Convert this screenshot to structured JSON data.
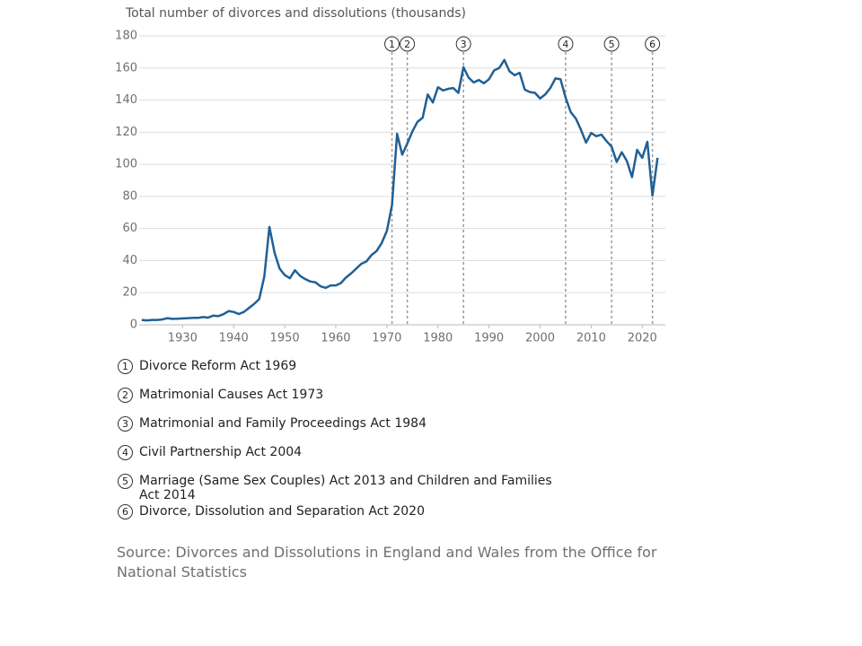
{
  "chart_data": {
    "type": "line",
    "y_label": "Total number of divorces and dissolutions (thousands)",
    "color": "#206095",
    "x": [
      1922,
      1923,
      1924,
      1925,
      1926,
      1927,
      1928,
      1929,
      1930,
      1931,
      1932,
      1933,
      1934,
      1935,
      1936,
      1937,
      1938,
      1939,
      1940,
      1941,
      1942,
      1943,
      1944,
      1945,
      1946,
      1947,
      1948,
      1949,
      1950,
      1951,
      1952,
      1953,
      1954,
      1955,
      1956,
      1957,
      1958,
      1959,
      1960,
      1961,
      1962,
      1963,
      1964,
      1965,
      1966,
      1967,
      1968,
      1969,
      1970,
      1971,
      1972,
      1973,
      1974,
      1975,
      1976,
      1977,
      1978,
      1979,
      1980,
      1981,
      1982,
      1983,
      1984,
      1985,
      1986,
      1987,
      1988,
      1989,
      1990,
      1991,
      1992,
      1993,
      1994,
      1995,
      1996,
      1997,
      1998,
      1999,
      2000,
      2001,
      2002,
      2003,
      2004,
      2005,
      2006,
      2007,
      2008,
      2009,
      2010,
      2011,
      2012,
      2013,
      2014,
      2015,
      2016,
      2017,
      2018,
      2019,
      2020,
      2021,
      2022,
      2023
    ],
    "values": [
      3.0,
      2.7,
      3.0,
      3.0,
      3.3,
      4.1,
      3.7,
      3.8,
      4.0,
      4.1,
      4.3,
      4.3,
      4.8,
      4.5,
      5.7,
      5.4,
      6.6,
      8.5,
      8.0,
      6.7,
      8.0,
      10.5,
      13,
      16,
      30,
      61,
      45,
      35,
      31,
      29,
      34,
      30.5,
      28.5,
      27,
      26.5,
      24,
      23,
      24.5,
      24.5,
      26,
      29.5,
      32,
      35,
      38,
      39.5,
      43.5,
      46,
      51,
      58.5,
      74.5,
      119,
      106,
      113,
      120.5,
      126.5,
      129,
      143.5,
      138.5,
      148,
      146,
      147,
      147.5,
      144.5,
      160.5,
      154,
      151,
      152.5,
      150.5,
      153,
      158.5,
      160,
      165,
      158,
      155.5,
      157,
      146.5,
      145,
      144.5,
      141,
      143.5,
      147.5,
      153.5,
      153,
      141.5,
      132.5,
      128.5,
      121.5,
      113.5,
      119.5,
      117.5,
      118.5,
      114.5,
      111,
      101.5,
      107.5,
      102,
      92,
      109,
      104,
      114,
      80.5,
      104
    ],
    "xlim": [
      1921.5,
      2024
    ],
    "xticks": [
      1930,
      1940,
      1950,
      1960,
      1970,
      1980,
      1990,
      2000,
      2010,
      2020
    ],
    "ylim": [
      0,
      180
    ],
    "yticks": [
      0,
      20,
      40,
      60,
      80,
      100,
      120,
      140,
      160,
      180
    ],
    "grid": true,
    "events": [
      {
        "label": "1",
        "x": 1971,
        "text": "Divorce Reform Act 1969"
      },
      {
        "label": "2",
        "x": 1974,
        "text": "Matrimonial Causes Act 1973"
      },
      {
        "label": "3",
        "x": 1985,
        "text": "Matrimonial and Family Proceedings Act 1984"
      },
      {
        "label": "4",
        "x": 2005,
        "text": "Civil Partnership Act 2004"
      },
      {
        "label": "5",
        "x": 2014,
        "text": "Marriage (Same Sex Couples) Act 2013 and Children and Families Act 2014"
      },
      {
        "label": "6",
        "x": 2022,
        "text": "Divorce, Dissolution and Separation Act 2020"
      }
    ],
    "source": "Source: Divorces and Dissolutions in England and Wales from the Office for National Statistics"
  }
}
